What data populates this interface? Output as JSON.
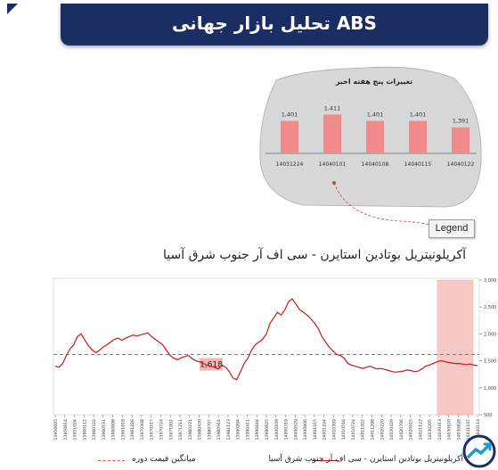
{
  "header": {
    "title": "تحلیل بازار جهانی ABS"
  },
  "legend_button": {
    "label": "Legend"
  },
  "chart_data": [
    {
      "type": "bar",
      "title": "تغییرات پنج هفته اخیر",
      "categories": [
        "14031224",
        "14040101",
        "14040108",
        "14040115",
        "14040122"
      ],
      "values": [
        1401,
        1411,
        1401,
        1401,
        1391
      ],
      "data_labels": [
        "1,401",
        "1,411",
        "1,401",
        "1,401",
        "1,391"
      ],
      "color": "#f28b8b"
    },
    {
      "type": "line",
      "title": "آکریلونیتریل بوتادین استایرن - سی اف آر جنوب شرق آسیا",
      "x_ticks": [
        "13950605",
        "13950814",
        "13951024",
        "13960112",
        "13960322",
        "13960531",
        "13960808",
        "13961018",
        "13961228",
        "13970308",
        "13970517",
        "13970724",
        "13971002",
        "13971211",
        "13980221",
        "13980430",
        "13980707",
        "13980914",
        "13981123",
        "13990204",
        "13990411",
        "13990618",
        "13990825",
        "14000109",
        "14000319",
        "14000529",
        "14000806",
        "14001015",
        "14001224",
        "14010309",
        "14010516",
        "14010724",
        "14011002",
        "14011208",
        "14020220",
        "14020429",
        "14020706",
        "14020915",
        "14021122",
        "14030205",
        "14030413",
        "14030620",
        "14030828",
        "14031107",
        "14040114"
      ],
      "y_ticks": [
        "500",
        "1,000",
        "1,500",
        "2,000",
        "2,500",
        "3,000"
      ],
      "ylim": [
        500,
        3000
      ],
      "series": [
        {
          "name": "آکریلونیتریل بوتادین استایرن - سی اف آر جنوب شرق آسیا",
          "color": "#c41a1a",
          "values": [
            1400,
            1380,
            1450,
            1600,
            1720,
            1800,
            1950,
            2000,
            1880,
            1780,
            1700,
            1650,
            1700,
            1760,
            1800,
            1850,
            1900,
            1920,
            1880,
            1920,
            1950,
            1980,
            1960,
            1980,
            2000,
            2020,
            1950,
            1900,
            1850,
            1800,
            1700,
            1600,
            1550,
            1520,
            1560,
            1580,
            1600,
            1540,
            1500,
            1480,
            1450,
            1420,
            1400,
            1380,
            1350,
            1420,
            1380,
            1300,
            1180,
            1150,
            1300,
            1450,
            1550,
            1700,
            1800,
            1850,
            1900,
            2000,
            2200,
            2300,
            2400,
            2350,
            2450,
            2600,
            2650,
            2550,
            2450,
            2400,
            2350,
            2280,
            2200,
            2100,
            1950,
            1850,
            1750,
            1680,
            1620,
            1600,
            1550,
            1450,
            1420,
            1400,
            1380,
            1360,
            1380,
            1400,
            1370,
            1350,
            1360,
            1340,
            1320,
            1300,
            1290,
            1300,
            1310,
            1330,
            1320,
            1300,
            1310,
            1350,
            1400,
            1420,
            1450,
            1480,
            1500,
            1490,
            1470,
            1460,
            1450,
            1450,
            1440,
            1430,
            1440,
            1420,
            1410
          ]
        },
        {
          "name": "میانگین قیمت دوره",
          "color": "#e8503a",
          "style": "dashed",
          "value": 1618
        }
      ],
      "annotations": [
        {
          "label": "1,618"
        }
      ],
      "highlight": "last five weeks (shaded)"
    }
  ]
}
